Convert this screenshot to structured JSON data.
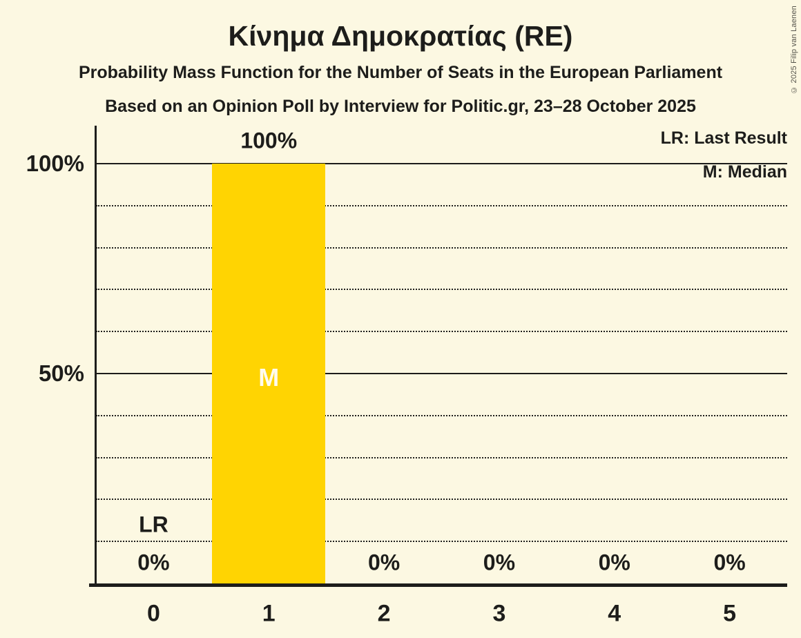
{
  "title": "Κίνημα Δημοκρατίας (RE)",
  "subtitles": [
    "Probability Mass Function for the Number of Seats in the European Parliament",
    "Based on an Opinion Poll by Interview for Politic.gr, 23–28 October 2025"
  ],
  "legend": {
    "last_result": "LR: Last Result",
    "median": "M: Median"
  },
  "copyright": "© 2025 Filip van Laenen",
  "colors": {
    "background": "#FCF8E2",
    "bar": "#FFD402",
    "text": "#1D1D1B",
    "bar_annotation_text": "#FFFBEE"
  },
  "chart_data": {
    "type": "bar",
    "title": "Κίνημα Δημοκρατίας (RE)",
    "categories": [
      "0",
      "1",
      "2",
      "3",
      "4",
      "5"
    ],
    "values_pct": [
      0,
      100,
      0,
      0,
      0,
      0
    ],
    "bar_value_labels": [
      "0%",
      "100%",
      "0%",
      "0%",
      "0%",
      "0%"
    ],
    "annotations": [
      {
        "category": "0",
        "label": "LR",
        "meaning": "Last Result"
      },
      {
        "category": "1",
        "label": "M",
        "meaning": "Median"
      }
    ],
    "y_axis": {
      "range": [
        0,
        100
      ],
      "tick_labels": [
        {
          "label": "100%",
          "value": 100
        },
        {
          "label": "50%",
          "value": 50
        }
      ],
      "solid_gridlines": [
        50,
        100
      ],
      "dotted_gridlines": [
        10,
        20,
        30,
        40,
        60,
        70,
        80,
        90
      ]
    },
    "legend_position": "top-right",
    "grid": "dotted horizontal lines every 10%"
  }
}
